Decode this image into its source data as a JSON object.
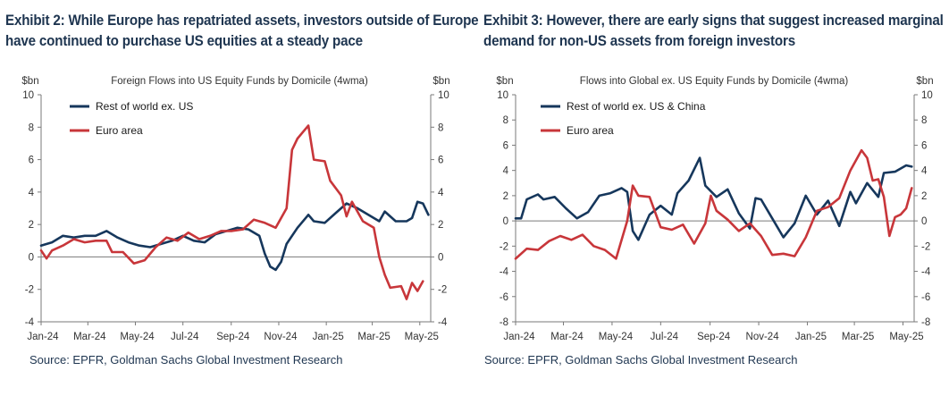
{
  "exhibits": [
    {
      "title_line1": "Exhibit 2: While Europe has repatriated assets, investors outside of Europe",
      "title_line2": "have continued to purchase US equities at a steady pace",
      "source": "Source: EPFR, Goldman Sachs Global Investment Research"
    },
    {
      "title_line1": "Exhibit 3: However, there are early signs that suggest increased marginal",
      "title_line2": "demand for non-US assets from foreign investors",
      "source": "Source: EPFR, Goldman Sachs Global Investment Research"
    }
  ],
  "colors": {
    "rest_of_world": "#16375c",
    "euro_area": "#c8363a",
    "text": "#1e3550"
  },
  "chart_data": [
    {
      "type": "line",
      "title": "Foreign Flows into US Equity Funds by Domicile (4wma)",
      "ylabel_left": "$bn",
      "ylabel_right": "$bn",
      "ylim": [
        -4,
        10
      ],
      "yticks": [
        10,
        8,
        6,
        4,
        2,
        0,
        -2,
        -4
      ],
      "xlim": [
        "2024-01-01",
        "2025-05-15"
      ],
      "xticks": [
        "Jan-24",
        "Mar-24",
        "May-24",
        "Jul-24",
        "Sep-24",
        "Nov-24",
        "Jan-25",
        "Mar-25",
        "May-25"
      ],
      "legend_position": "top-left",
      "grid": false,
      "series": [
        {
          "name": "Rest of world ex. US",
          "color_key": "rest_of_world",
          "points": [
            [
              "2024-01-01",
              0.7
            ],
            [
              "2024-01-15",
              0.9
            ],
            [
              "2024-01-29",
              1.3
            ],
            [
              "2024-02-12",
              1.2
            ],
            [
              "2024-02-26",
              1.3
            ],
            [
              "2024-03-11",
              1.3
            ],
            [
              "2024-03-25",
              1.6
            ],
            [
              "2024-04-08",
              1.2
            ],
            [
              "2024-04-22",
              0.9
            ],
            [
              "2024-05-06",
              0.7
            ],
            [
              "2024-05-20",
              0.6
            ],
            [
              "2024-06-03",
              0.8
            ],
            [
              "2024-06-17",
              1.0
            ],
            [
              "2024-07-01",
              1.3
            ],
            [
              "2024-07-15",
              1.0
            ],
            [
              "2024-07-29",
              0.9
            ],
            [
              "2024-08-12",
              1.4
            ],
            [
              "2024-08-26",
              1.6
            ],
            [
              "2024-09-09",
              1.8
            ],
            [
              "2024-09-23",
              1.7
            ],
            [
              "2024-10-07",
              1.3
            ],
            [
              "2024-10-14",
              0.2
            ],
            [
              "2024-10-21",
              -0.6
            ],
            [
              "2024-10-28",
              -0.8
            ],
            [
              "2024-11-04",
              -0.3
            ],
            [
              "2024-11-11",
              0.8
            ],
            [
              "2024-11-25",
              1.8
            ],
            [
              "2024-12-09",
              2.6
            ],
            [
              "2024-12-16",
              2.2
            ],
            [
              "2024-12-30",
              2.1
            ],
            [
              "2025-01-13",
              2.7
            ],
            [
              "2025-01-27",
              3.3
            ],
            [
              "2025-02-10",
              3.0
            ],
            [
              "2025-02-24",
              2.6
            ],
            [
              "2025-03-10",
              2.2
            ],
            [
              "2025-03-17",
              2.8
            ],
            [
              "2025-03-31",
              2.2
            ],
            [
              "2025-04-14",
              2.2
            ],
            [
              "2025-04-21",
              2.4
            ],
            [
              "2025-04-28",
              3.4
            ],
            [
              "2025-05-05",
              3.3
            ],
            [
              "2025-05-12",
              2.6
            ]
          ]
        },
        {
          "name": "Euro area",
          "color_key": "euro_area",
          "points": [
            [
              "2024-01-01",
              0.4
            ],
            [
              "2024-01-08",
              -0.1
            ],
            [
              "2024-01-15",
              0.4
            ],
            [
              "2024-01-29",
              0.7
            ],
            [
              "2024-02-12",
              1.1
            ],
            [
              "2024-02-26",
              0.9
            ],
            [
              "2024-03-11",
              1.0
            ],
            [
              "2024-03-25",
              1.0
            ],
            [
              "2024-04-01",
              0.3
            ],
            [
              "2024-04-15",
              0.3
            ],
            [
              "2024-04-29",
              -0.4
            ],
            [
              "2024-05-13",
              -0.2
            ],
            [
              "2024-05-27",
              0.6
            ],
            [
              "2024-06-10",
              1.2
            ],
            [
              "2024-06-24",
              1.0
            ],
            [
              "2024-07-08",
              1.5
            ],
            [
              "2024-07-22",
              1.1
            ],
            [
              "2024-08-05",
              1.3
            ],
            [
              "2024-08-19",
              1.6
            ],
            [
              "2024-09-02",
              1.6
            ],
            [
              "2024-09-16",
              1.7
            ],
            [
              "2024-09-30",
              2.3
            ],
            [
              "2024-10-14",
              2.1
            ],
            [
              "2024-10-28",
              1.8
            ],
            [
              "2024-11-11",
              3.0
            ],
            [
              "2024-11-18",
              6.6
            ],
            [
              "2024-11-25",
              7.3
            ],
            [
              "2024-12-02",
              7.7
            ],
            [
              "2024-12-09",
              8.1
            ],
            [
              "2024-12-16",
              6.0
            ],
            [
              "2024-12-30",
              5.9
            ],
            [
              "2025-01-06",
              4.7
            ],
            [
              "2025-01-20",
              3.8
            ],
            [
              "2025-01-27",
              2.5
            ],
            [
              "2025-02-03",
              3.4
            ],
            [
              "2025-02-17",
              2.2
            ],
            [
              "2025-03-03",
              1.8
            ],
            [
              "2025-03-10",
              0.0
            ],
            [
              "2025-03-17",
              -1.1
            ],
            [
              "2025-03-24",
              -1.9
            ],
            [
              "2025-04-07",
              -1.8
            ],
            [
              "2025-04-14",
              -2.6
            ],
            [
              "2025-04-21",
              -1.6
            ],
            [
              "2025-04-28",
              -2.1
            ],
            [
              "2025-05-05",
              -1.5
            ]
          ]
        }
      ]
    },
    {
      "type": "line",
      "title": "Flows into Global ex. US Equity Funds by Domicile (4wma)",
      "ylabel_left": "$bn",
      "ylabel_right": "$bn",
      "ylim": [
        -8,
        10
      ],
      "yticks": [
        10,
        8,
        6,
        4,
        2,
        0,
        -2,
        -4,
        -6,
        -8
      ],
      "xlim": [
        "2024-01-01",
        "2025-05-15"
      ],
      "xticks": [
        "Jan-24",
        "Mar-24",
        "May-24",
        "Jul-24",
        "Sep-24",
        "Nov-24",
        "Jan-25",
        "Mar-25",
        "May-25"
      ],
      "legend_position": "top-left",
      "grid": false,
      "series": [
        {
          "name": "Rest of world ex. US & China",
          "color_key": "rest_of_world",
          "points": [
            [
              "2024-01-01",
              0.2
            ],
            [
              "2024-01-08",
              0.2
            ],
            [
              "2024-01-15",
              1.7
            ],
            [
              "2024-01-29",
              2.1
            ],
            [
              "2024-02-05",
              1.7
            ],
            [
              "2024-02-19",
              1.9
            ],
            [
              "2024-03-04",
              1.0
            ],
            [
              "2024-03-18",
              0.2
            ],
            [
              "2024-04-01",
              0.7
            ],
            [
              "2024-04-15",
              2.0
            ],
            [
              "2024-04-29",
              2.2
            ],
            [
              "2024-05-13",
              2.6
            ],
            [
              "2024-05-20",
              2.3
            ],
            [
              "2024-05-27",
              -0.8
            ],
            [
              "2024-06-03",
              -1.5
            ],
            [
              "2024-06-17",
              0.5
            ],
            [
              "2024-07-01",
              1.2
            ],
            [
              "2024-07-15",
              0.5
            ],
            [
              "2024-07-22",
              2.2
            ],
            [
              "2024-08-05",
              3.2
            ],
            [
              "2024-08-19",
              5.0
            ],
            [
              "2024-08-26",
              2.8
            ],
            [
              "2024-09-09",
              1.9
            ],
            [
              "2024-09-23",
              2.5
            ],
            [
              "2024-10-07",
              0.6
            ],
            [
              "2024-10-21",
              -0.6
            ],
            [
              "2024-10-28",
              1.8
            ],
            [
              "2024-11-04",
              1.7
            ],
            [
              "2024-11-18",
              0.2
            ],
            [
              "2024-12-02",
              -1.3
            ],
            [
              "2024-12-16",
              -0.2
            ],
            [
              "2024-12-30",
              2.0
            ],
            [
              "2025-01-13",
              0.5
            ],
            [
              "2025-01-27",
              1.6
            ],
            [
              "2025-02-10",
              -0.4
            ],
            [
              "2025-02-24",
              2.3
            ],
            [
              "2025-03-03",
              1.4
            ],
            [
              "2025-03-17",
              3.0
            ],
            [
              "2025-03-31",
              1.9
            ],
            [
              "2025-04-07",
              3.8
            ],
            [
              "2025-04-21",
              3.9
            ],
            [
              "2025-05-05",
              4.4
            ],
            [
              "2025-05-12",
              4.3
            ]
          ]
        },
        {
          "name": "Euro area",
          "color_key": "euro_area",
          "points": [
            [
              "2024-01-01",
              -3.0
            ],
            [
              "2024-01-15",
              -2.2
            ],
            [
              "2024-01-29",
              -2.3
            ],
            [
              "2024-02-12",
              -1.6
            ],
            [
              "2024-02-26",
              -1.2
            ],
            [
              "2024-03-11",
              -1.5
            ],
            [
              "2024-03-25",
              -1.1
            ],
            [
              "2024-04-08",
              -2.0
            ],
            [
              "2024-04-22",
              -2.3
            ],
            [
              "2024-05-06",
              -3.0
            ],
            [
              "2024-05-20",
              0.0
            ],
            [
              "2024-05-27",
              2.8
            ],
            [
              "2024-06-03",
              2.0
            ],
            [
              "2024-06-17",
              1.9
            ],
            [
              "2024-07-01",
              -0.5
            ],
            [
              "2024-07-15",
              -0.7
            ],
            [
              "2024-07-29",
              -0.3
            ],
            [
              "2024-08-12",
              -1.8
            ],
            [
              "2024-08-26",
              -0.2
            ],
            [
              "2024-09-02",
              2.0
            ],
            [
              "2024-09-09",
              0.8
            ],
            [
              "2024-09-23",
              0.1
            ],
            [
              "2024-10-07",
              -0.8
            ],
            [
              "2024-10-21",
              -0.2
            ],
            [
              "2024-11-04",
              -1.2
            ],
            [
              "2024-11-18",
              -2.7
            ],
            [
              "2024-12-02",
              -2.6
            ],
            [
              "2024-12-16",
              -2.8
            ],
            [
              "2024-12-30",
              -1.3
            ],
            [
              "2025-01-13",
              0.8
            ],
            [
              "2025-01-27",
              1.1
            ],
            [
              "2025-02-10",
              1.8
            ],
            [
              "2025-02-24",
              4.0
            ],
            [
              "2025-03-10",
              5.6
            ],
            [
              "2025-03-17",
              5.0
            ],
            [
              "2025-03-24",
              3.2
            ],
            [
              "2025-03-31",
              3.3
            ],
            [
              "2025-04-07",
              1.9
            ],
            [
              "2025-04-14",
              -1.2
            ],
            [
              "2025-04-21",
              0.3
            ],
            [
              "2025-04-28",
              0.5
            ],
            [
              "2025-05-05",
              1.0
            ],
            [
              "2025-05-12",
              2.6
            ]
          ]
        }
      ]
    }
  ]
}
